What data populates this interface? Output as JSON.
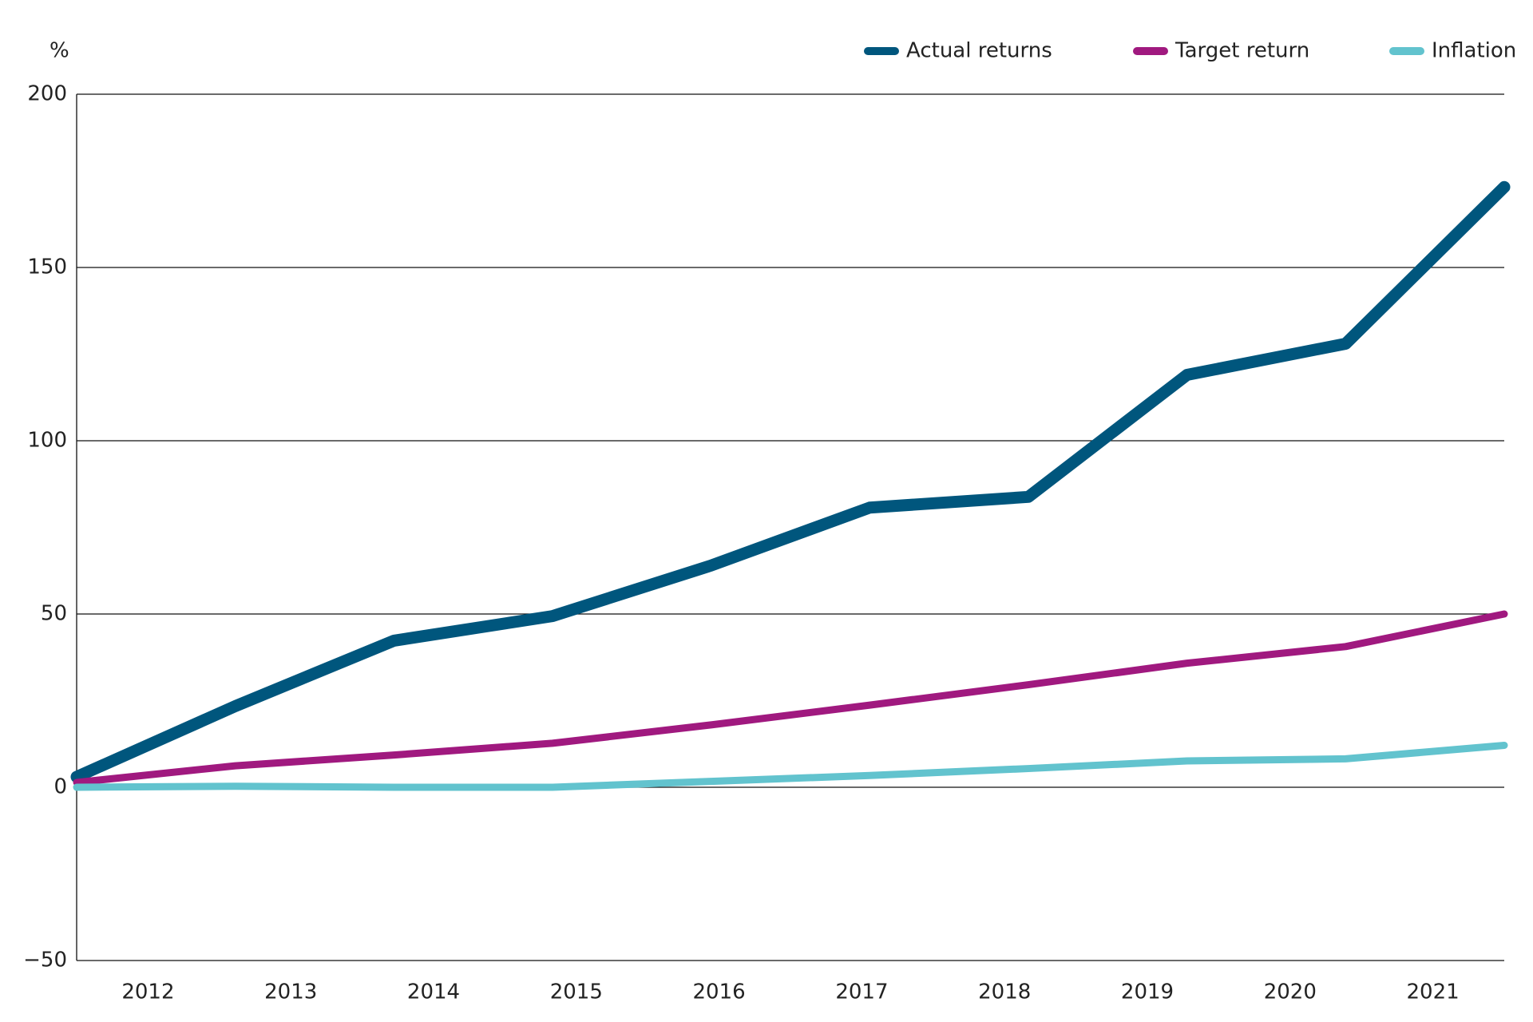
{
  "chart_data": {
    "type": "line",
    "y_unit_label": "%",
    "categories": [
      "2012",
      "2013",
      "2014",
      "2015",
      "2016",
      "2017",
      "2018",
      "2019",
      "2020",
      "2021"
    ],
    "series": [
      {
        "name": "Actual returns",
        "color": "#00567d",
        "values": [
          3,
          23.4,
          42.3,
          49.4,
          64,
          80.7,
          83.8,
          119,
          128,
          173.2
        ]
      },
      {
        "name": "Target return",
        "color": "#a0197f",
        "values": [
          1.4,
          6.2,
          9.3,
          12.7,
          18,
          23.7,
          29.6,
          35.8,
          40.6,
          50
        ]
      },
      {
        "name": "Inflation",
        "color": "#62c3ce",
        "values": [
          0,
          0.3,
          0,
          0,
          1.7,
          3.4,
          5.4,
          7.6,
          8.2,
          12.1
        ]
      }
    ],
    "ylim": [
      -50,
      200
    ],
    "yticks": [
      {
        "value": -50,
        "label": "−50"
      },
      0,
      50,
      100,
      150,
      200
    ],
    "grid": true,
    "legend": "top-right"
  }
}
